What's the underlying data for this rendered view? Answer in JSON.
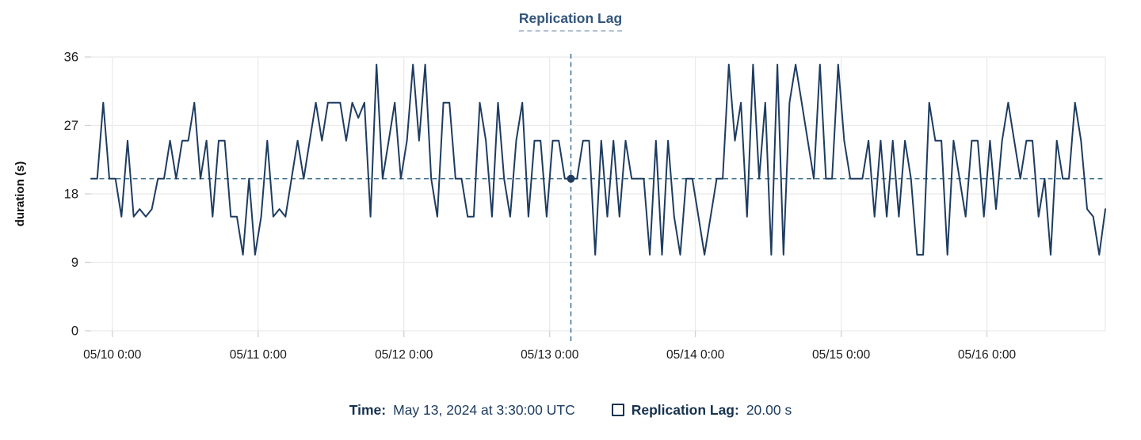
{
  "title": "Replication Lag",
  "tooltip": {
    "time_label": "Time:",
    "time_value": "May 13, 2024 at 3:30:00 UTC",
    "series_label": "Replication Lag:",
    "series_value": "20.00 s"
  },
  "icons": {
    "series_swatch": "square-outline"
  },
  "colors": {
    "line": "#1e3c60",
    "dashed": "#3e7191",
    "grid": "#ebebeb",
    "tick": "#d2d2d2",
    "title": "#33567d",
    "title_underline": "#b3c0d4",
    "axis_text": "#1a1a1a",
    "legend_text": "#16324f",
    "background": "#ffffff"
  },
  "chart_data": {
    "type": "line",
    "title": "Replication Lag",
    "xlabel": "",
    "ylabel": "duration (s)",
    "ylim": [
      0,
      36
    ],
    "y_ticks": [
      0,
      9,
      18,
      27,
      36
    ],
    "x_tick_labels": [
      "05/10 0:00",
      "05/11 0:00",
      "05/12 0:00",
      "05/13 0:00",
      "05/14 0:00",
      "05/15 0:00",
      "05/16 0:00"
    ],
    "x_tick_indices": [
      3.5,
      27.5,
      51.5,
      75.5,
      99.5,
      123.5,
      147.5
    ],
    "x_interval_hours": 1,
    "grid": true,
    "legend_position": "bottom",
    "threshold_value": 20,
    "marker": {
      "index": 79,
      "value": 20,
      "time": "May 13, 2024 at 3:30:00 UTC",
      "display_value": "20.00 s"
    },
    "values": [
      20,
      20,
      30,
      20,
      20,
      15,
      25,
      15,
      16,
      15,
      16,
      20,
      20,
      25,
      20,
      25,
      25,
      30,
      20,
      25,
      15,
      25,
      25,
      15,
      15,
      10,
      20,
      10,
      15,
      25,
      15,
      16,
      15,
      20,
      25,
      20,
      25,
      30,
      25,
      30,
      30,
      30,
      25,
      30,
      28,
      30,
      15,
      35,
      20,
      25,
      30,
      20,
      25,
      35,
      25,
      35,
      20,
      15,
      30,
      30,
      20,
      20,
      15,
      15,
      30,
      25,
      15,
      30,
      20,
      15,
      25,
      30,
      15,
      25,
      25,
      15,
      25,
      25,
      20,
      20,
      20,
      25,
      25,
      10,
      25,
      15,
      25,
      15,
      25,
      20,
      20,
      20,
      10,
      25,
      10,
      25,
      15,
      10,
      20,
      20,
      15,
      10,
      15,
      20,
      20,
      35,
      25,
      30,
      15,
      35,
      20,
      30,
      10,
      35,
      10,
      30,
      35,
      30,
      25,
      20,
      35,
      20,
      20,
      35,
      25,
      20,
      20,
      20,
      25,
      15,
      25,
      15,
      25,
      15,
      25,
      20,
      10,
      10,
      30,
      25,
      25,
      10,
      25,
      20,
      15,
      25,
      25,
      15,
      25,
      16,
      25,
      30,
      25,
      20,
      25,
      25,
      15,
      20,
      10,
      25,
      20,
      20,
      30,
      25,
      16,
      15,
      10,
      16
    ]
  }
}
